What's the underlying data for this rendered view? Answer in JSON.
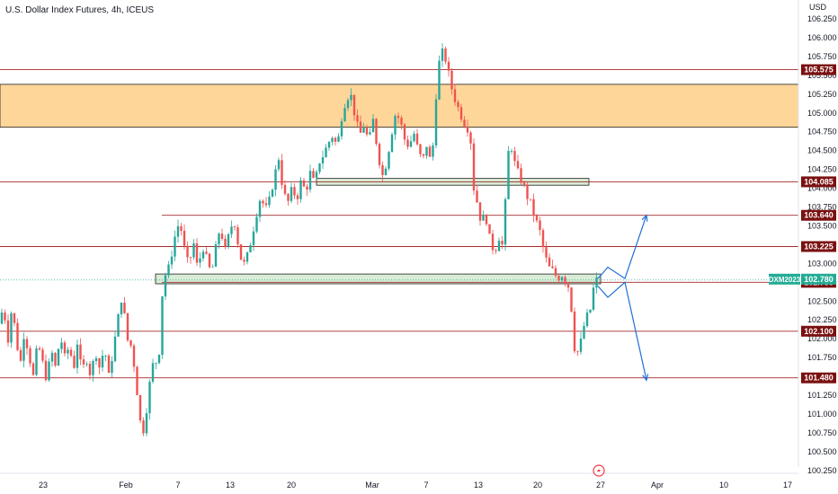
{
  "header": {
    "title": "U.S. Dollar Index Futures, 4h, ICEUS"
  },
  "axis": {
    "currency_label": "USD",
    "price_ticks": [
      "106.250",
      "106.000",
      "105.750",
      "105.500",
      "105.250",
      "105.000",
      "104.750",
      "104.500",
      "104.250",
      "104.000",
      "103.750",
      "103.500",
      "103.250",
      "103.000",
      "102.750",
      "102.500",
      "102.250",
      "102.000",
      "101.750",
      "101.500",
      "101.250",
      "101.000",
      "100.750",
      "100.500",
      "100.250"
    ],
    "date_ticks": [
      "23",
      "Feb",
      "7",
      "13",
      "20",
      "Mar",
      "7",
      "13",
      "20",
      "27",
      "Apr",
      "10",
      "17"
    ]
  },
  "levels": [
    {
      "value": 105.575,
      "label": "105.575"
    },
    {
      "value": 104.085,
      "label": "104.085"
    },
    {
      "value": 103.64,
      "label": "103.640"
    },
    {
      "value": 103.225,
      "label": "103.225"
    },
    {
      "value": 102.75,
      "label": "102.750"
    },
    {
      "value": 102.1,
      "label": "102.100"
    },
    {
      "value": 101.48,
      "label": "101.480"
    }
  ],
  "last_price": {
    "symbol": "DXM2023",
    "value": "102.780"
  },
  "zones": [
    {
      "name": "supply",
      "from": 104.81,
      "to": 105.38,
      "color": "#ffd699"
    },
    {
      "name": "resistance-box",
      "from": 104.04,
      "to": 104.13,
      "color": "#d8ecd6"
    },
    {
      "name": "support-box",
      "from": 102.73,
      "to": 102.86,
      "color": "#d8ecd6"
    }
  ],
  "colors": {
    "up": "#26a69a",
    "down": "#ef5350",
    "level_line": "#a52a2a",
    "badge": "#7a1010",
    "last_badge": "#22ab94",
    "arrow": "#1e6fd9"
  },
  "icons": {
    "scroll": "lightning-icon"
  },
  "chart_data": {
    "type": "candlestick",
    "title": "U.S. Dollar Index Futures, 4h, ICEUS",
    "ylabel": "USD",
    "ylim": [
      100.15,
      106.4
    ],
    "series": [
      {
        "name": "DXM2023",
        "path": [
          [
            102.2,
            0
          ],
          [
            102.5,
            4
          ],
          [
            101.9,
            8
          ],
          [
            102.4,
            13
          ],
          [
            102.05,
            18
          ],
          [
            101.6,
            22
          ],
          [
            102.1,
            27
          ],
          [
            101.8,
            32
          ],
          [
            101.5,
            37
          ],
          [
            101.95,
            42
          ],
          [
            101.7,
            47
          ],
          [
            101.45,
            52
          ],
          [
            101.85,
            57
          ],
          [
            101.6,
            62
          ],
          [
            102.05,
            67
          ],
          [
            101.75,
            72
          ],
          [
            101.9,
            77
          ],
          [
            101.6,
            82
          ],
          [
            101.95,
            86
          ],
          [
            101.55,
            91
          ],
          [
            101.75,
            96
          ],
          [
            101.5,
            101
          ],
          [
            101.85,
            106
          ],
          [
            101.6,
            111
          ],
          [
            101.9,
            116
          ],
          [
            101.5,
            121
          ],
          [
            101.85,
            126
          ],
          [
            102.25,
            131
          ],
          [
            102.6,
            136
          ],
          [
            102.0,
            141
          ],
          [
            101.9,
            146
          ],
          [
            101.5,
            151
          ],
          [
            100.95,
            155
          ],
          [
            100.75,
            159
          ],
          [
            101.15,
            164
          ],
          [
            101.55,
            168
          ],
          [
            101.75,
            172
          ],
          [
            101.6,
            176
          ],
          [
            102.55,
            180
          ],
          [
            102.85,
            184
          ],
          [
            102.95,
            188
          ],
          [
            103.2,
            192
          ],
          [
            103.45,
            196
          ],
          [
            103.55,
            200
          ],
          [
            103.2,
            205
          ],
          [
            102.95,
            210
          ],
          [
            103.3,
            215
          ],
          [
            102.9,
            220
          ],
          [
            103.25,
            225
          ],
          [
            103.05,
            230
          ],
          [
            102.85,
            235
          ],
          [
            103.2,
            240
          ],
          [
            103.5,
            245
          ],
          [
            103.15,
            250
          ],
          [
            103.4,
            255
          ],
          [
            103.6,
            260
          ],
          [
            103.25,
            265
          ],
          [
            102.95,
            270
          ],
          [
            103.1,
            275
          ],
          [
            103.35,
            280
          ],
          [
            103.65,
            285
          ],
          [
            103.9,
            290
          ],
          [
            103.7,
            295
          ],
          [
            103.85,
            300
          ],
          [
            104.15,
            305
          ],
          [
            104.4,
            310
          ],
          [
            103.95,
            315
          ],
          [
            103.8,
            320
          ],
          [
            104.0,
            325
          ],
          [
            103.85,
            330
          ],
          [
            104.1,
            335
          ],
          [
            103.95,
            340
          ],
          [
            104.2,
            345
          ],
          [
            104.05,
            350
          ],
          [
            104.35,
            355
          ],
          [
            104.45,
            360
          ],
          [
            104.6,
            365
          ],
          [
            104.7,
            370
          ],
          [
            104.55,
            375
          ],
          [
            104.95,
            380
          ],
          [
            105.2,
            385
          ],
          [
            105.25,
            390
          ],
          [
            104.95,
            395
          ],
          [
            104.7,
            400
          ],
          [
            104.85,
            405
          ],
          [
            104.6,
            410
          ],
          [
            104.9,
            415
          ],
          [
            104.5,
            420
          ],
          [
            104.15,
            425
          ],
          [
            104.35,
            430
          ],
          [
            104.7,
            435
          ],
          [
            105.0,
            440
          ],
          [
            104.9,
            445
          ],
          [
            104.65,
            450
          ],
          [
            104.55,
            455
          ],
          [
            104.75,
            460
          ],
          [
            104.5,
            465
          ],
          [
            104.35,
            470
          ],
          [
            104.6,
            475
          ],
          [
            104.25,
            480
          ],
          [
            105.1,
            484
          ],
          [
            105.65,
            488
          ],
          [
            105.8,
            492
          ],
          [
            105.7,
            496
          ],
          [
            105.45,
            500
          ],
          [
            105.25,
            504
          ],
          [
            105.05,
            510
          ],
          [
            104.9,
            515
          ],
          [
            104.8,
            520
          ],
          [
            104.6,
            524
          ],
          [
            104.0,
            527
          ],
          [
            103.8,
            531
          ],
          [
            103.55,
            535
          ],
          [
            103.65,
            540
          ],
          [
            103.3,
            545
          ],
          [
            103.15,
            550
          ],
          [
            103.35,
            555
          ],
          [
            103.2,
            560
          ],
          [
            104.4,
            564
          ],
          [
            104.6,
            568
          ],
          [
            104.3,
            573
          ],
          [
            104.15,
            578
          ],
          [
            104.05,
            582
          ],
          [
            103.9,
            586
          ],
          [
            103.8,
            590
          ],
          [
            103.6,
            595
          ],
          [
            103.45,
            600
          ],
          [
            103.15,
            605
          ],
          [
            102.95,
            610
          ],
          [
            102.9,
            615
          ],
          [
            102.8,
            620
          ],
          [
            102.85,
            625
          ],
          [
            102.75,
            630
          ],
          [
            102.65,
            634
          ],
          [
            102.15,
            637
          ],
          [
            101.75,
            640
          ],
          [
            101.9,
            645
          ],
          [
            102.15,
            649
          ],
          [
            102.3,
            653
          ],
          [
            102.4,
            657
          ],
          [
            102.75,
            661
          ],
          [
            102.8,
            665
          ]
        ]
      }
    ],
    "arrow_paths": [
      [
        [
          665,
          102.8
        ],
        [
          676,
          102.95
        ],
        [
          695,
          102.8
        ],
        [
          719,
          103.64
        ]
      ],
      [
        [
          665,
          102.7
        ],
        [
          676,
          102.55
        ],
        [
          695,
          102.75
        ],
        [
          719,
          101.45
        ]
      ]
    ]
  }
}
